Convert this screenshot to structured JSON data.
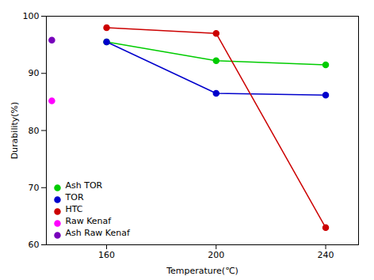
{
  "chart_data": {
    "type": "line",
    "xlabel": "Temperature(℃)",
    "ylabel": "Durability(%)",
    "xlim": [
      138,
      252
    ],
    "ylim": [
      60,
      100
    ],
    "xticks": [
      160,
      200,
      240
    ],
    "yticks": [
      60,
      70,
      80,
      90,
      100
    ],
    "grid": false,
    "legend": "lower left",
    "series": [
      {
        "name": "Ash TOR",
        "color": "#00cc00",
        "marker": "o",
        "x": [
          160,
          200,
          240
        ],
        "values": [
          95.5,
          92.2,
          91.5
        ]
      },
      {
        "name": "TOR",
        "color": "#0000cc",
        "marker": "o",
        "x": [
          160,
          200,
          240
        ],
        "values": [
          95.5,
          86.5,
          86.2
        ]
      },
      {
        "name": "HTC",
        "color": "#cc0000",
        "marker": "o",
        "x": [
          160,
          200,
          240
        ],
        "values": [
          98.0,
          97.0,
          63.0
        ]
      },
      {
        "name": "Raw Kenaf",
        "color": "#ff00ff",
        "marker": "o",
        "x": [
          140
        ],
        "values": [
          85.2
        ]
      },
      {
        "name": "Ash Raw Kenaf",
        "color": "#7700bb",
        "marker": "o",
        "x": [
          140
        ],
        "values": [
          95.8
        ]
      }
    ]
  }
}
